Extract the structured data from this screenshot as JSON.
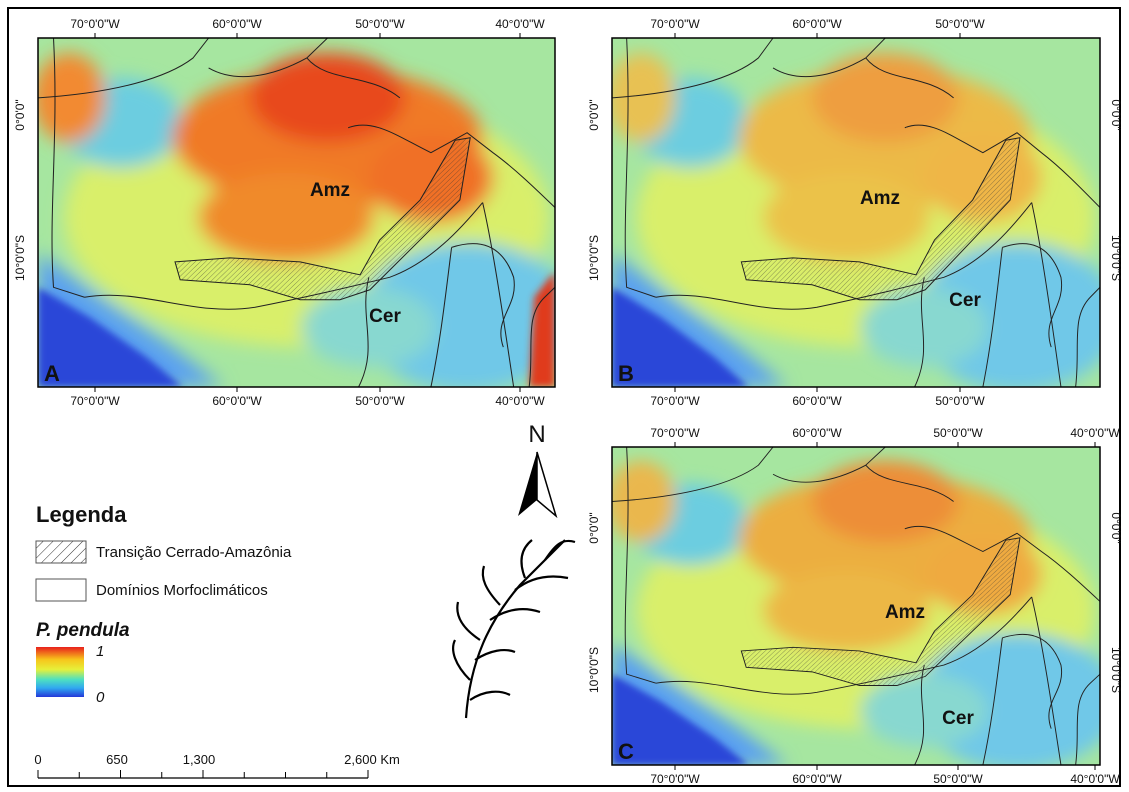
{
  "panels": [
    {
      "letter": "A",
      "top_labels": [
        "70°0'0\"W",
        "60°0'0\"W",
        "50°0'0\"W",
        "40°0'0\"W"
      ],
      "bottom_labels": [
        "70°0'0\"W",
        "60°0'0\"W",
        "50°0'0\"W",
        "40°0'0\"W"
      ],
      "left_labels": [
        "0°0'0\"",
        "10°0'0\"S"
      ],
      "amz": "Amz",
      "cer": "Cer"
    },
    {
      "letter": "B",
      "top_labels": [
        "70°0'0\"W",
        "60°0'0\"W",
        "50°0'0\"W"
      ],
      "bottom_labels": [
        "70°0'0\"W",
        "60°0'0\"W",
        "50°0'0\"W"
      ],
      "left_labels": [
        "0°0'0\"",
        "10°0'0\"S"
      ],
      "right_labels": [
        "0°0'0\"",
        "10°0'0\"S"
      ],
      "amz": "Amz",
      "cer": "Cer"
    },
    {
      "letter": "C",
      "top_labels": [
        "70°0'0\"W",
        "60°0'0\"W",
        "50°0'0\"W",
        "40°0'0\"W"
      ],
      "bottom_labels": [
        "70°0'0\"W",
        "60°0'0\"W",
        "50°0'0\"W",
        "40°0'0\"W"
      ],
      "left_labels": [
        "0°0'0\"",
        "10°0'0\"S"
      ],
      "right_labels": [
        "0°0'0\"",
        "10°0'0\"S"
      ],
      "amz": "Amz",
      "cer": "Cer"
    }
  ],
  "legend": {
    "title": "Legenda",
    "items": [
      "Transição Cerrado-Amazônia",
      "Domínios Morfoclimáticos"
    ],
    "species": "P. pendula",
    "scale_max": "1",
    "scale_min": "0"
  },
  "scale_bar": {
    "labels": [
      "0",
      "650",
      "1,300",
      "2,600 Km"
    ]
  },
  "north": "N"
}
